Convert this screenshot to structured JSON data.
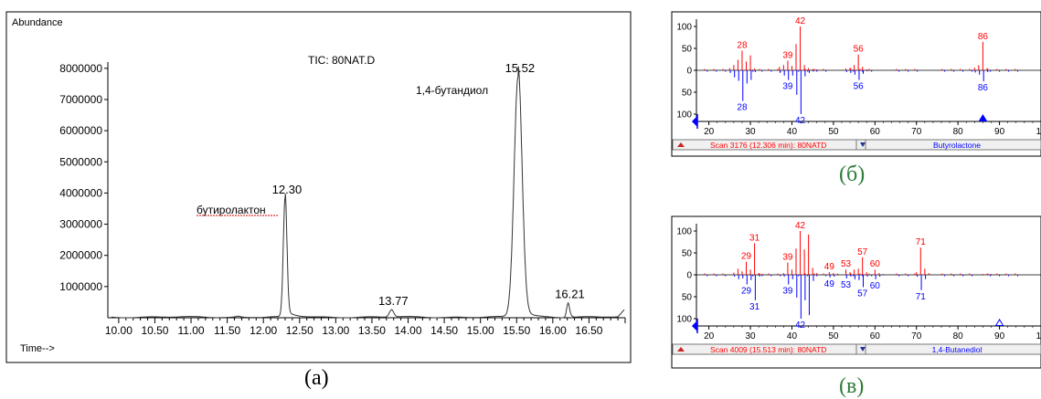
{
  "colors": {
    "library_trace": "#ff0000",
    "reference_trace": "#0000ff",
    "baseline": "#333333",
    "caption_green": "#2e7d3a",
    "text": "#000000"
  },
  "panels": {
    "a": {
      "caption": "(a)",
      "abundance_label": "Abundance",
      "time_label": "Time-->",
      "tic_label": "TIC: 80NAT.D"
    },
    "b": {
      "caption": "(б)"
    },
    "c": {
      "caption": "(в)"
    }
  },
  "chart_data": [
    {
      "type": "line",
      "title": "TIC: 80NAT.D",
      "ylabel": "Abundance",
      "xlabel": "Time-->",
      "xlim": [
        9.85,
        17.0
      ],
      "ylim": [
        0,
        8200000
      ],
      "x_ticks": [
        "10.00",
        "10.50",
        "11.00",
        "11.50",
        "12.00",
        "12.50",
        "13.00",
        "13.50",
        "14.00",
        "14.50",
        "15.00",
        "15.50",
        "16.00",
        "16.50"
      ],
      "y_ticks": [
        "1000000",
        "2000000",
        "3000000",
        "4000000",
        "5000000",
        "6000000",
        "7000000",
        "8000000"
      ],
      "series": [
        {
          "peaks": [
            {
              "x": 12.3,
              "y": 3800000,
              "label": "12.30"
            },
            {
              "x": 13.77,
              "y": 230000,
              "label": "13.77"
            },
            {
              "x": 15.52,
              "y": 7700000,
              "label": "15.52"
            },
            {
              "x": 16.21,
              "y": 450000,
              "label": "16.21"
            }
          ]
        }
      ],
      "annotations": [
        {
          "text": "бутиролактон",
          "x": 12.3
        },
        {
          "text": "1,4-бутандиол",
          "x": 15.52
        }
      ]
    },
    {
      "type": "bar",
      "panel": "б",
      "xlim": [
        17,
        100
      ],
      "ylim": [
        -100,
        100
      ],
      "x_ticks": [
        "20",
        "30",
        "40",
        "50",
        "60",
        "70",
        "80",
        "90",
        "10"
      ],
      "y_ticks_top": [
        "100",
        "50",
        "0"
      ],
      "y_ticks_bottom": [
        "50",
        "100"
      ],
      "scan_label": "Scan 3176 (12.306 min): 80NATD",
      "reference_name": "Butyrolactone",
      "upper": {
        "mz": [
          25,
          26,
          27,
          28,
          29,
          30,
          31,
          37,
          38,
          39,
          40,
          41,
          42,
          43,
          44,
          45,
          46,
          53,
          54,
          55,
          56,
          57,
          58,
          84,
          85,
          86,
          87
        ],
        "intensity": [
          5,
          12,
          24,
          45,
          20,
          34,
          4,
          8,
          12,
          22,
          10,
          60,
          100,
          12,
          5,
          3,
          2,
          4,
          6,
          12,
          36,
          8,
          2,
          6,
          12,
          65,
          5
        ],
        "labels": [
          {
            "mz": 28,
            "text": "28"
          },
          {
            "mz": 39,
            "text": "39"
          },
          {
            "mz": 42,
            "text": "42"
          },
          {
            "mz": 56,
            "text": "56"
          },
          {
            "mz": 86,
            "text": "86"
          }
        ]
      },
      "lower": {
        "mz": [
          25,
          26,
          27,
          28,
          29,
          30,
          31,
          37,
          38,
          39,
          40,
          41,
          42,
          43,
          44,
          45,
          53,
          54,
          55,
          56,
          57,
          58,
          84,
          85,
          86,
          87
        ],
        "intensity": [
          6,
          16,
          24,
          70,
          30,
          22,
          4,
          6,
          12,
          22,
          12,
          56,
          100,
          14,
          6,
          3,
          4,
          6,
          10,
          22,
          8,
          2,
          5,
          10,
          25,
          4
        ],
        "labels": [
          {
            "mz": 28,
            "text": "28"
          },
          {
            "mz": 39,
            "text": "39"
          },
          {
            "mz": 42,
            "text": "42"
          },
          {
            "mz": 56,
            "text": "56"
          },
          {
            "mz": 86,
            "text": "86"
          }
        ]
      }
    },
    {
      "type": "bar",
      "panel": "в",
      "xlim": [
        17,
        100
      ],
      "ylim": [
        -100,
        100
      ],
      "x_ticks": [
        "20",
        "30",
        "40",
        "50",
        "60",
        "70",
        "80",
        "90",
        "10"
      ],
      "y_ticks_top": [
        "100",
        "50",
        "0"
      ],
      "y_ticks_bottom": [
        "50",
        "100"
      ],
      "scan_label": "Scan 4009 (15.513 min): 80NATD",
      "reference_name": "1,4-Butanediol",
      "upper": {
        "mz": [
          26,
          27,
          28,
          29,
          30,
          31,
          32,
          33,
          38,
          39,
          40,
          41,
          42,
          43,
          44,
          45,
          46,
          49,
          50,
          51,
          53,
          54,
          55,
          56,
          57,
          58,
          60,
          61,
          62,
          70,
          71,
          72,
          73,
          86,
          87,
          88
        ],
        "intensity": [
          5,
          14,
          8,
          30,
          12,
          72,
          4,
          2,
          4,
          28,
          12,
          60,
          100,
          58,
          92,
          16,
          4,
          6,
          4,
          3,
          12,
          6,
          12,
          14,
          40,
          6,
          12,
          4,
          2,
          6,
          62,
          14,
          4,
          2,
          2,
          2
        ],
        "labels": [
          {
            "mz": 29,
            "text": "29"
          },
          {
            "mz": 31,
            "text": "31"
          },
          {
            "mz": 39,
            "text": "39"
          },
          {
            "mz": 42,
            "text": "42"
          },
          {
            "mz": 49,
            "text": "49"
          },
          {
            "mz": 53,
            "text": "53"
          },
          {
            "mz": 57,
            "text": "57"
          },
          {
            "mz": 60,
            "text": "60"
          },
          {
            "mz": 71,
            "text": "71"
          }
        ]
      },
      "lower": {
        "mz": [
          26,
          27,
          28,
          29,
          30,
          31,
          32,
          38,
          39,
          40,
          41,
          42,
          43,
          44,
          45,
          49,
          50,
          53,
          54,
          55,
          56,
          57,
          58,
          60,
          61,
          70,
          71,
          72
        ],
        "intensity": [
          4,
          10,
          8,
          22,
          12,
          58,
          4,
          4,
          22,
          10,
          52,
          100,
          58,
          92,
          14,
          6,
          4,
          8,
          4,
          10,
          12,
          28,
          4,
          10,
          4,
          4,
          35,
          10
        ],
        "labels": [
          {
            "mz": 29,
            "text": "29"
          },
          {
            "mz": 31,
            "text": "31"
          },
          {
            "mz": 39,
            "text": "39"
          },
          {
            "mz": 42,
            "text": "42"
          },
          {
            "mz": 49,
            "text": "49"
          },
          {
            "mz": 53,
            "text": "53"
          },
          {
            "mz": 57,
            "text": "57"
          },
          {
            "mz": 60,
            "text": "60"
          },
          {
            "mz": 71,
            "text": "71"
          }
        ]
      }
    }
  ]
}
